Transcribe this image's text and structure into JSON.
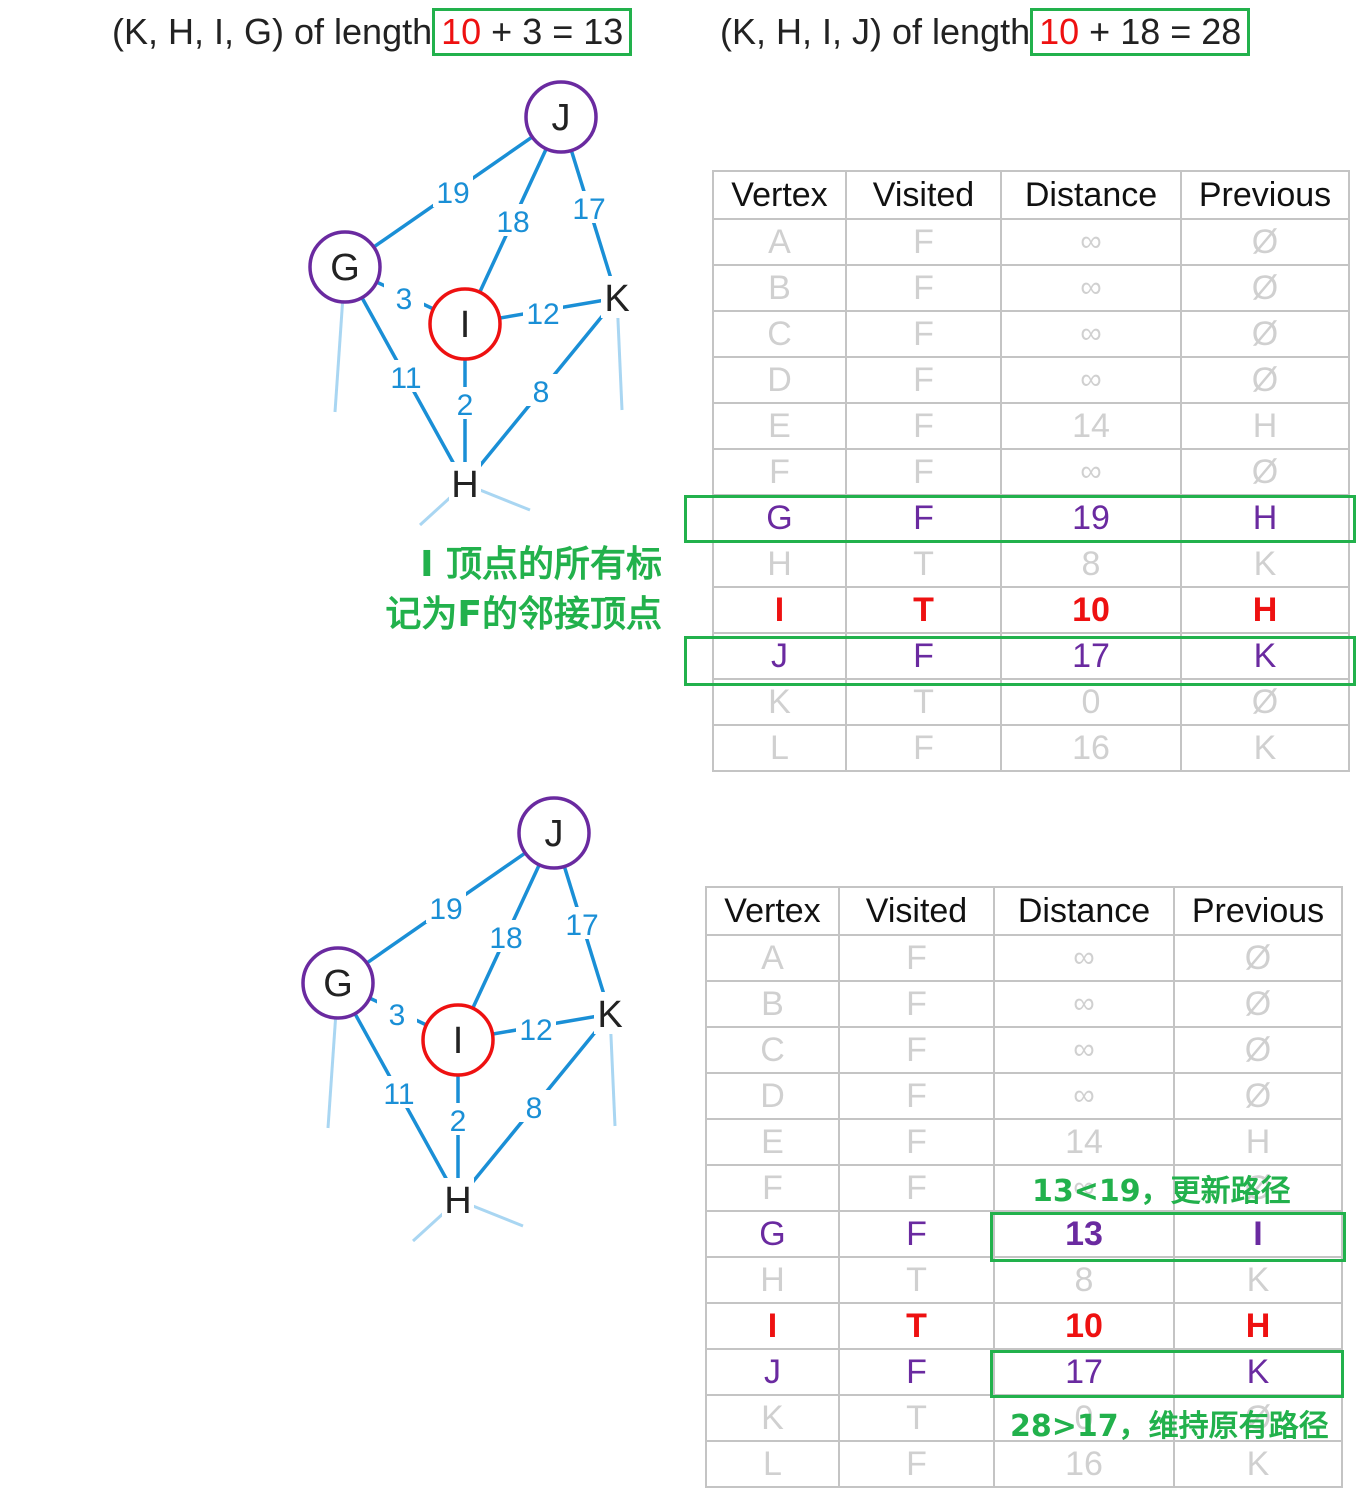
{
  "top_captions": [
    {
      "text_prefix": "(K, H, I, G) of length",
      "red": "10",
      "rest": " + 3 = 13"
    },
    {
      "text_prefix": "(K, H, I, J) of length",
      "red": "10",
      "rest": " + 18 = 28"
    }
  ],
  "graph": {
    "nodes": [
      {
        "id": "J",
        "label": "J",
        "ring": "purple"
      },
      {
        "id": "G",
        "label": "G",
        "ring": "purple"
      },
      {
        "id": "I",
        "label": "I",
        "ring": "red"
      },
      {
        "id": "K",
        "label": "K",
        "ring": ""
      },
      {
        "id": "H",
        "label": "H",
        "ring": ""
      }
    ],
    "edges": [
      {
        "from": "G",
        "to": "J",
        "weight": "19"
      },
      {
        "from": "I",
        "to": "J",
        "weight": "18"
      },
      {
        "from": "J",
        "to": "K",
        "weight": "17"
      },
      {
        "from": "G",
        "to": "I",
        "weight": "3"
      },
      {
        "from": "I",
        "to": "K",
        "weight": "12"
      },
      {
        "from": "G",
        "to": "H",
        "weight": "11"
      },
      {
        "from": "I",
        "to": "H",
        "weight": "2"
      },
      {
        "from": "K",
        "to": "H",
        "weight": "8"
      }
    ]
  },
  "table": {
    "headers": [
      "Vertex",
      "Visited",
      "Distance",
      "Previous"
    ]
  },
  "table1_rows": [
    {
      "v": "A",
      "visited": "F",
      "dist": "∞",
      "prev": "Ø",
      "style": "faded"
    },
    {
      "v": "B",
      "visited": "F",
      "dist": "∞",
      "prev": "Ø",
      "style": "faded"
    },
    {
      "v": "C",
      "visited": "F",
      "dist": "∞",
      "prev": "Ø",
      "style": "faded"
    },
    {
      "v": "D",
      "visited": "F",
      "dist": "∞",
      "prev": "Ø",
      "style": "faded"
    },
    {
      "v": "E",
      "visited": "F",
      "dist": "14",
      "prev": "H",
      "style": "faded"
    },
    {
      "v": "F",
      "visited": "F",
      "dist": "∞",
      "prev": "Ø",
      "style": "faded"
    },
    {
      "v": "G",
      "visited": "F",
      "dist": "19",
      "prev": "H",
      "style": "purple"
    },
    {
      "v": "H",
      "visited": "T",
      "dist": "8",
      "prev": "K",
      "style": "faded"
    },
    {
      "v": "I",
      "visited": "T",
      "dist": "10",
      "prev": "H",
      "style": "red"
    },
    {
      "v": "J",
      "visited": "F",
      "dist": "17",
      "prev": "K",
      "style": "purple"
    },
    {
      "v": "K",
      "visited": "T",
      "dist": "0",
      "prev": "Ø",
      "style": "faded"
    },
    {
      "v": "L",
      "visited": "F",
      "dist": "16",
      "prev": "K",
      "style": "faded"
    }
  ],
  "table2_rows": [
    {
      "v": "A",
      "visited": "F",
      "dist": "∞",
      "prev": "Ø",
      "style": "faded"
    },
    {
      "v": "B",
      "visited": "F",
      "dist": "∞",
      "prev": "Ø",
      "style": "faded"
    },
    {
      "v": "C",
      "visited": "F",
      "dist": "∞",
      "prev": "Ø",
      "style": "faded"
    },
    {
      "v": "D",
      "visited": "F",
      "dist": "∞",
      "prev": "Ø",
      "style": "faded"
    },
    {
      "v": "E",
      "visited": "F",
      "dist": "14",
      "prev": "H",
      "style": "faded"
    },
    {
      "v": "F",
      "visited": "F",
      "dist": "∞",
      "prev": "Ø",
      "style": "faded"
    },
    {
      "v": "G",
      "visited": "F",
      "dist": "13",
      "prev": "I",
      "style": "purple-bold"
    },
    {
      "v": "H",
      "visited": "T",
      "dist": "8",
      "prev": "K",
      "style": "faded"
    },
    {
      "v": "I",
      "visited": "T",
      "dist": "10",
      "prev": "H",
      "style": "red"
    },
    {
      "v": "J",
      "visited": "F",
      "dist": "17",
      "prev": "K",
      "style": "purple"
    },
    {
      "v": "K",
      "visited": "T",
      "dist": "0",
      "prev": "Ø",
      "style": "faded"
    },
    {
      "v": "L",
      "visited": "F",
      "dist": "16",
      "prev": "K",
      "style": "faded"
    }
  ],
  "notes": {
    "neighbors_line1": "I  顶点的所有标",
    "neighbors_line2": "记为F的邻接顶点",
    "update": "13<19，更新路径",
    "keep": "28>17，维持原有路径"
  },
  "colors": {
    "edge": "#1a8fd6",
    "purple": "#6a2aa0",
    "red": "#ee1111",
    "green": "#22b14c"
  }
}
